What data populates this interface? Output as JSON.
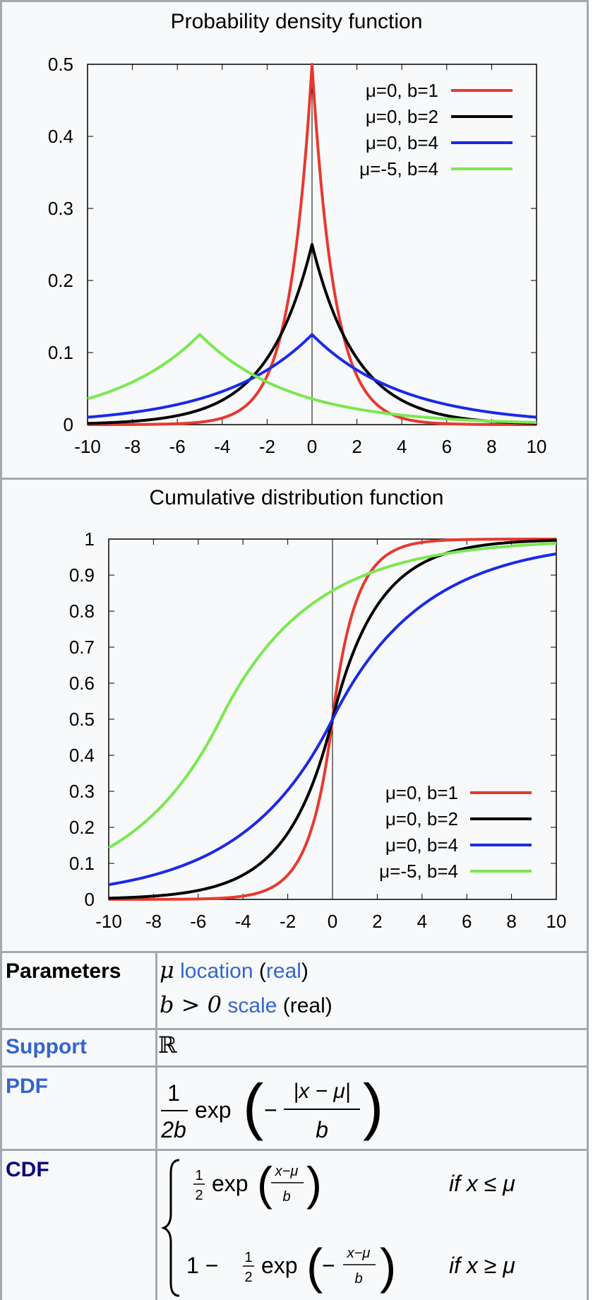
{
  "colors": {
    "series": [
      "#e8392f",
      "#000000",
      "#1a2ae6",
      "#7ae84f"
    ],
    "link": "#3366cc",
    "border": "#a2a9b1",
    "background": "#f8f9fa"
  },
  "pdf_title": "Probability density function",
  "cdf_title": "Cumulative distribution function",
  "chart_data": [
    {
      "type": "line",
      "title": "Probability density function",
      "xlabel": "",
      "ylabel": "",
      "xlim": [
        -10,
        10
      ],
      "ylim": [
        0,
        0.5
      ],
      "x_ticks": [
        "-10",
        "-8",
        "-6",
        "-4",
        "-2",
        "0",
        "2",
        "4",
        "6",
        "8",
        "10"
      ],
      "y_ticks": [
        "0",
        "0.1",
        "0.2",
        "0.3",
        "0.4",
        "0.5"
      ],
      "legend_position": "top-right",
      "series": [
        {
          "name": "μ=0, b=1",
          "mu": 0,
          "b": 1,
          "color": "#e8392f"
        },
        {
          "name": "μ=0, b=2",
          "mu": 0,
          "b": 2,
          "color": "#000000"
        },
        {
          "name": "μ=0, b=4",
          "mu": 0,
          "b": 4,
          "color": "#1a2ae6"
        },
        {
          "name": "μ=-5, b=4",
          "mu": -5,
          "b": 4,
          "color": "#7ae84f"
        }
      ]
    },
    {
      "type": "line",
      "title": "Cumulative distribution function",
      "xlabel": "",
      "ylabel": "",
      "xlim": [
        -10,
        10
      ],
      "ylim": [
        0,
        1
      ],
      "x_ticks": [
        "-10",
        "-8",
        "-6",
        "-4",
        "-2",
        "0",
        "2",
        "4",
        "6",
        "8",
        "10"
      ],
      "y_ticks": [
        "0",
        "0.1",
        "0.2",
        "0.3",
        "0.4",
        "0.5",
        "0.6",
        "0.7",
        "0.8",
        "0.9",
        "1"
      ],
      "legend_position": "bottom-right",
      "series": [
        {
          "name": "μ=0, b=1",
          "mu": 0,
          "b": 1,
          "color": "#e8392f"
        },
        {
          "name": "μ=0, b=2",
          "mu": 0,
          "b": 2,
          "color": "#000000"
        },
        {
          "name": "μ=0, b=4",
          "mu": 0,
          "b": 4,
          "color": "#1a2ae6"
        },
        {
          "name": "μ=-5, b=4",
          "mu": -5,
          "b": 4,
          "color": "#7ae84f"
        }
      ]
    }
  ],
  "infobox": {
    "parameters_label": "Parameters",
    "param1_symbol": "μ",
    "param1_link": "location",
    "param1_open": "(",
    "param1_type": "real",
    "param1_close": ")",
    "param2_symbol": "b > 0",
    "param2_link": "scale",
    "param2_type": "(real)",
    "support_label": "Support",
    "support_value": "ℝ",
    "pdf_label": "PDF",
    "pdf_frac_num": "1",
    "pdf_frac_den": "2b",
    "pdf_exp": "exp",
    "pdf_inner_num": "|x − μ|",
    "pdf_inner_den": "b",
    "pdf_minus": "−",
    "cdf_label": "CDF",
    "cdf_half_num": "1",
    "cdf_half_den": "2",
    "cdf_exp": "exp",
    "cdf_frac_num": "x−μ",
    "cdf_frac_den": "b",
    "cdf_case1_cond": "if x ≤ μ",
    "cdf_case2_prefix": "1 −",
    "cdf_case2_minus": "−",
    "cdf_case2_cond": "if x ≥ μ"
  }
}
